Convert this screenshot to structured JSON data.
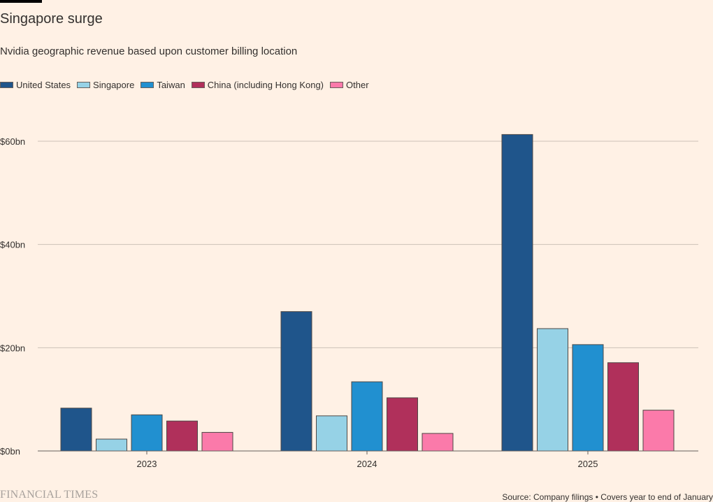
{
  "header": {
    "title": "Singapore surge",
    "subtitle": "Nvidia geographic revenue based upon customer billing location"
  },
  "footer": {
    "brand": "FINANCIAL TIMES",
    "source": "Source: Company filings • Covers year to end of January"
  },
  "colors": {
    "background": "#fff1e5",
    "gridline": "#ccc1b7",
    "axis": "#66605c",
    "bar_outline": "#4d4845"
  },
  "chart_data": {
    "type": "bar",
    "title": "Singapore surge",
    "xlabel": "",
    "ylabel": "",
    "ylim": [
      0,
      60
    ],
    "yticks": [
      0,
      20,
      40,
      60
    ],
    "ytick_labels": [
      "$0bn",
      "$20bn",
      "$40bn",
      "$60bn"
    ],
    "grid": true,
    "legend_position": "top-left",
    "categories": [
      "2023",
      "2024",
      "2025"
    ],
    "series": [
      {
        "name": "United States",
        "color": "#1f558b",
        "values": [
          8.3,
          27.0,
          61.3
        ]
      },
      {
        "name": "Singapore",
        "color": "#96d2e6",
        "values": [
          2.3,
          6.8,
          23.7
        ]
      },
      {
        "name": "Taiwan",
        "color": "#2190d0",
        "values": [
          7.0,
          13.4,
          20.6
        ]
      },
      {
        "name": "China (including Hong Kong)",
        "color": "#b0305b",
        "values": [
          5.8,
          10.3,
          17.1
        ]
      },
      {
        "name": "Other",
        "color": "#fb7aaa",
        "values": [
          3.6,
          3.4,
          7.9
        ]
      }
    ]
  }
}
